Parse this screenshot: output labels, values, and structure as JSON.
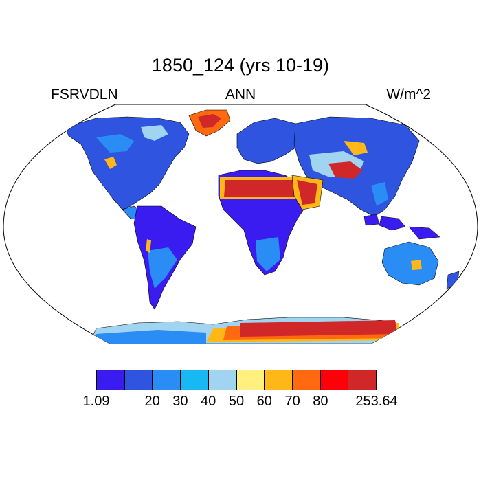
{
  "title": "1850_124 (yrs 10-19)",
  "variable": "FSRVDLN",
  "season": "ANN",
  "units": "W/m^2",
  "colorbar": {
    "colors": [
      "#3a1cf0",
      "#2f55e0",
      "#2a8cf5",
      "#18b8f5",
      "#a0d4f0",
      "#fff080",
      "#ffb818",
      "#ff6a10",
      "#ff0008",
      "#d02828"
    ],
    "labels": [
      "1.09",
      "20",
      "30",
      "40",
      "50",
      "60",
      "70",
      "80",
      "253.64"
    ]
  }
}
